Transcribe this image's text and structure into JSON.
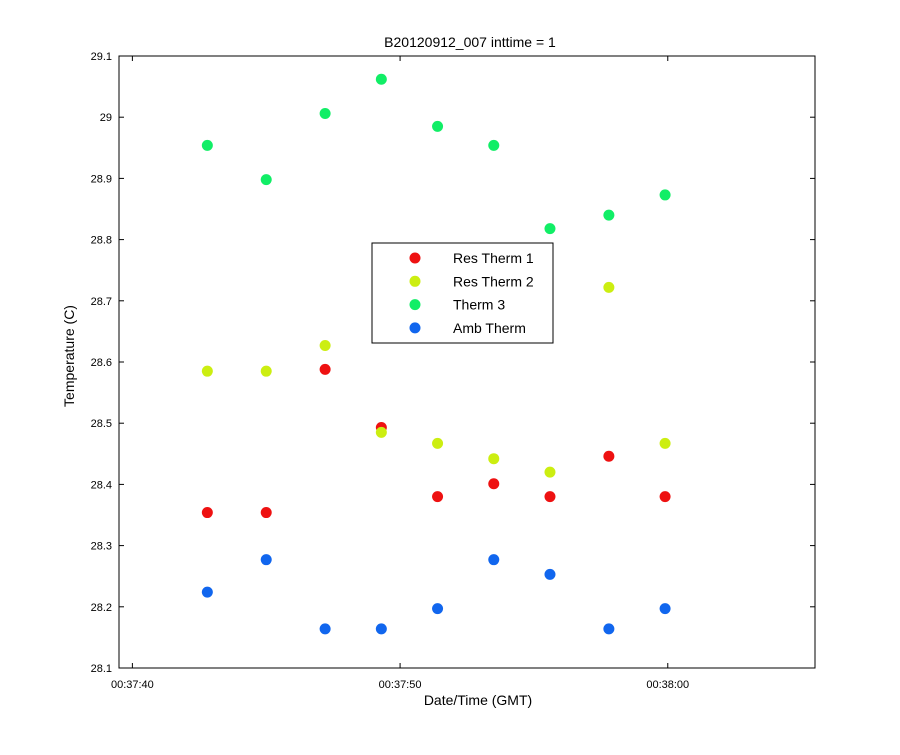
{
  "chart_data": {
    "type": "scatter",
    "title": "B20120912_007 inttime = 1",
    "xlabel": "Date/Time (GMT)",
    "ylabel": "Temperature (C)",
    "x_unit": "time (HH:MM:SS GMT)",
    "xlim": [
      "00:37:39.5",
      "00:38:05.5"
    ],
    "ylim": [
      28.1,
      29.1
    ],
    "x_ticks": [
      "00:37:40",
      "00:37:50",
      "00:38:00"
    ],
    "y_ticks": [
      "28.1",
      "28.2",
      "28.3",
      "28.4",
      "28.5",
      "28.6",
      "28.7",
      "28.8",
      "28.9",
      "29",
      "29.1"
    ],
    "grid": false,
    "legend_position": "center",
    "series": [
      {
        "name": "Res Therm 1",
        "color": "#ee1111",
        "points": [
          {
            "x": "00:37:42.8",
            "y": 28.354
          },
          {
            "x": "00:37:45.0",
            "y": 28.354
          },
          {
            "x": "00:37:47.2",
            "y": 28.588
          },
          {
            "x": "00:37:49.3",
            "y": 28.493
          },
          {
            "x": "00:37:51.4",
            "y": 28.38
          },
          {
            "x": "00:37:53.5",
            "y": 28.401
          },
          {
            "x": "00:37:55.6",
            "y": 28.38
          },
          {
            "x": "00:37:57.8",
            "y": 28.446
          },
          {
            "x": "00:37:59.9",
            "y": 28.38
          }
        ]
      },
      {
        "name": "Res Therm 2",
        "color": "#ccee11",
        "points": [
          {
            "x": "00:37:42.8",
            "y": 28.585
          },
          {
            "x": "00:37:45.0",
            "y": 28.585
          },
          {
            "x": "00:37:47.2",
            "y": 28.627
          },
          {
            "x": "00:37:49.3",
            "y": 28.485
          },
          {
            "x": "00:37:51.4",
            "y": 28.467
          },
          {
            "x": "00:37:53.5",
            "y": 28.442
          },
          {
            "x": "00:37:55.6",
            "y": 28.42
          },
          {
            "x": "00:37:57.8",
            "y": 28.722
          },
          {
            "x": "00:37:59.9",
            "y": 28.467
          }
        ]
      },
      {
        "name": "Therm 3",
        "color": "#11ee66",
        "points": [
          {
            "x": "00:37:42.8",
            "y": 28.954
          },
          {
            "x": "00:37:45.0",
            "y": 28.898
          },
          {
            "x": "00:37:47.2",
            "y": 29.006
          },
          {
            "x": "00:37:49.3",
            "y": 29.062
          },
          {
            "x": "00:37:51.4",
            "y": 28.985
          },
          {
            "x": "00:37:53.5",
            "y": 28.954
          },
          {
            "x": "00:37:55.6",
            "y": 28.818
          },
          {
            "x": "00:37:57.8",
            "y": 28.84
          },
          {
            "x": "00:37:59.9",
            "y": 28.873
          }
        ]
      },
      {
        "name": "Amb Therm",
        "color": "#1166ee",
        "points": [
          {
            "x": "00:37:42.8",
            "y": 28.224
          },
          {
            "x": "00:37:45.0",
            "y": 28.277
          },
          {
            "x": "00:37:47.2",
            "y": 28.164
          },
          {
            "x": "00:37:49.3",
            "y": 28.164
          },
          {
            "x": "00:37:51.4",
            "y": 28.197
          },
          {
            "x": "00:37:53.5",
            "y": 28.277
          },
          {
            "x": "00:37:55.6",
            "y": 28.253
          },
          {
            "x": "00:37:57.8",
            "y": 28.164
          },
          {
            "x": "00:37:59.9",
            "y": 28.197
          }
        ]
      }
    ]
  }
}
